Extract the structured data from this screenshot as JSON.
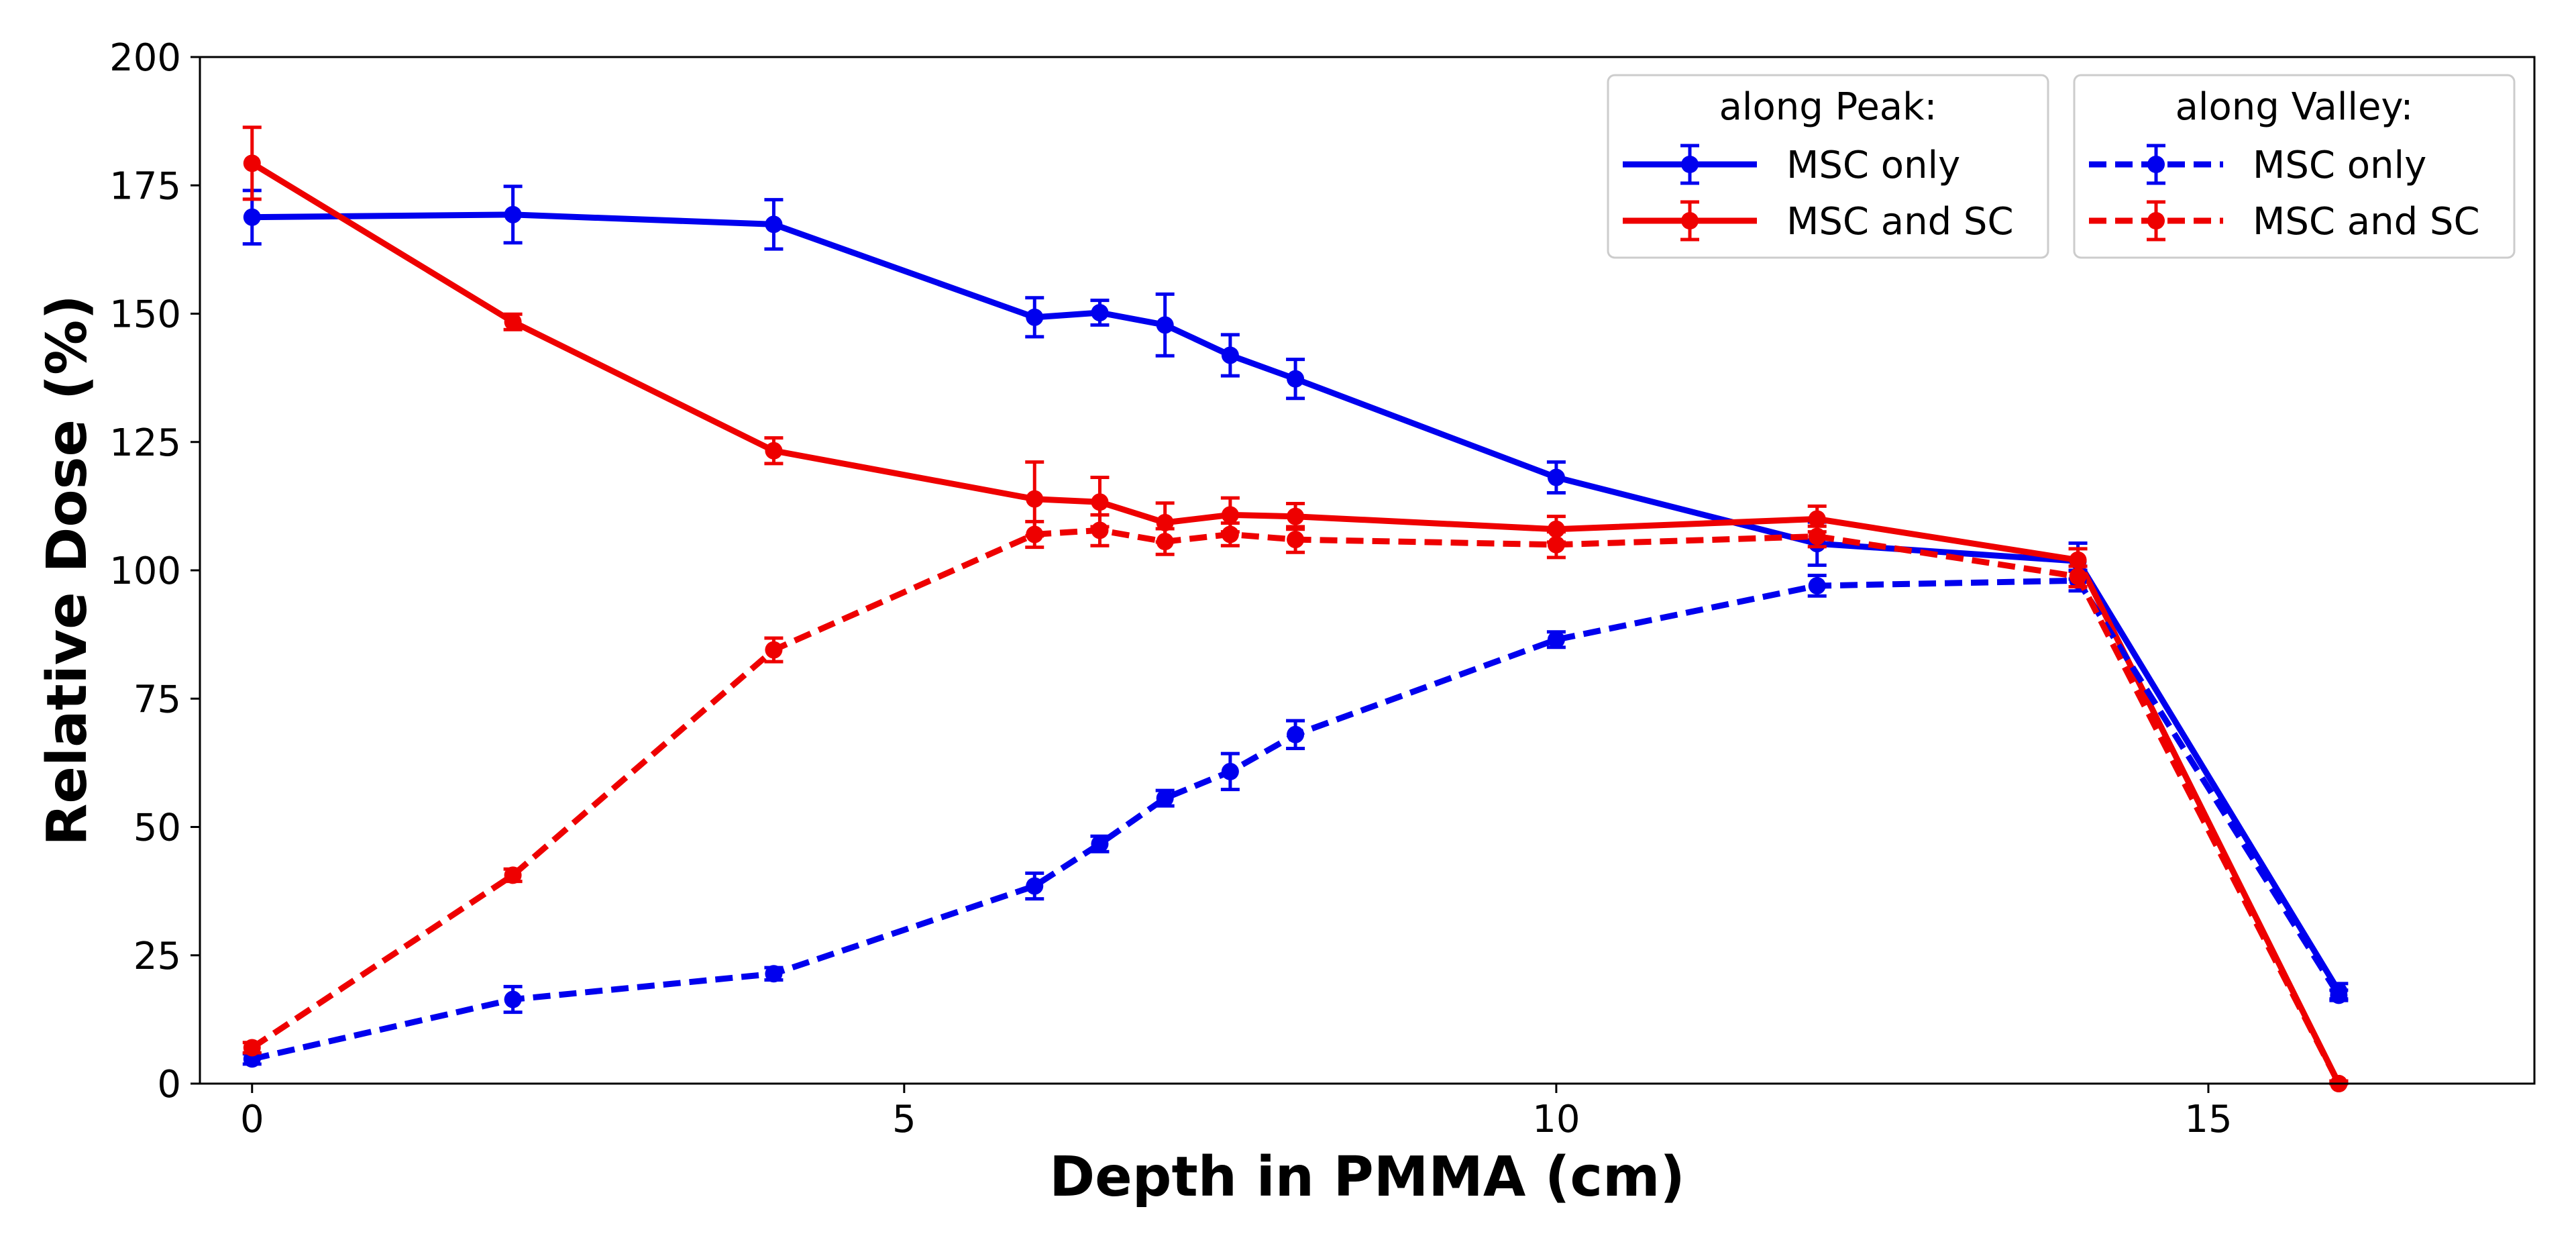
{
  "chart_data": {
    "type": "line",
    "title": "",
    "xlabel": "Depth in PMMA (cm)",
    "ylabel": "Relative Dose (%)",
    "xlim": [
      -0.4,
      17.5
    ],
    "ylim": [
      0,
      200
    ],
    "x_ticks": [
      0,
      5,
      10,
      15
    ],
    "y_ticks": [
      0,
      25,
      50,
      75,
      100,
      125,
      150,
      175,
      200
    ],
    "grid": false,
    "error_bars": true,
    "legend_placement": "top-right",
    "legend_groups": [
      {
        "title": "along Peak:",
        "series_names": [
          "MSC only",
          "MSC and SC"
        ]
      },
      {
        "title": "along Valley:",
        "series_names": [
          "MSC only",
          "MSC and SC"
        ]
      }
    ],
    "series": [
      {
        "name": "MSC only",
        "group": "along Peak",
        "color": "#0000ee",
        "line_style": "solid",
        "x": [
          0,
          2,
          4,
          6,
          6.5,
          7,
          7.5,
          8,
          10,
          12,
          14,
          16
        ],
        "y": [
          168.8,
          169.3,
          167.4,
          149.3,
          150.2,
          147.8,
          141.9,
          137.3,
          118.1,
          105.2,
          101.8,
          18.0
        ],
        "err": [
          5.2,
          5.5,
          4.8,
          3.8,
          2.4,
          6.0,
          4.0,
          3.8,
          3.0,
          4.2,
          3.5,
          1.5
        ]
      },
      {
        "name": "MSC and SC",
        "group": "along Peak",
        "color": "#ee0000",
        "line_style": "solid",
        "x": [
          0,
          2,
          4,
          6,
          6.5,
          7,
          7.5,
          8,
          10,
          12,
          14,
          16
        ],
        "y": [
          179.3,
          148.4,
          123.3,
          113.9,
          113.3,
          109.3,
          110.8,
          110.5,
          108.0,
          110.0,
          102.0,
          0.0
        ],
        "err": [
          7.0,
          1.5,
          2.5,
          7.2,
          4.8,
          3.8,
          3.3,
          2.5,
          2.5,
          2.5,
          2.2,
          0.5
        ]
      },
      {
        "name": "MSC only",
        "group": "along Valley",
        "color": "#0000ee",
        "line_style": "dashed",
        "x": [
          0,
          2,
          4,
          6,
          6.5,
          7,
          7.5,
          8,
          10,
          12,
          14,
          16
        ],
        "y": [
          4.8,
          16.4,
          21.4,
          38.5,
          46.7,
          55.6,
          60.8,
          68.0,
          86.5,
          97.0,
          98.0,
          17.2
        ],
        "err": [
          1.0,
          2.5,
          1.2,
          2.5,
          1.5,
          1.5,
          3.5,
          2.7,
          1.5,
          2.0,
          2.0,
          1.0
        ]
      },
      {
        "name": "MSC and SC",
        "group": "along Valley",
        "color": "#ee0000",
        "line_style": "dashed",
        "x": [
          0,
          2,
          4,
          6,
          6.5,
          7,
          7.5,
          8,
          10,
          12,
          14,
          16
        ],
        "y": [
          7.0,
          40.6,
          84.5,
          107.0,
          107.8,
          105.6,
          107.0,
          106.0,
          105.0,
          106.6,
          98.8,
          0.0
        ],
        "err": [
          1.0,
          1.2,
          2.3,
          2.5,
          3.0,
          2.5,
          2.2,
          2.5,
          2.5,
          2.0,
          2.0,
          0.5
        ]
      }
    ]
  }
}
